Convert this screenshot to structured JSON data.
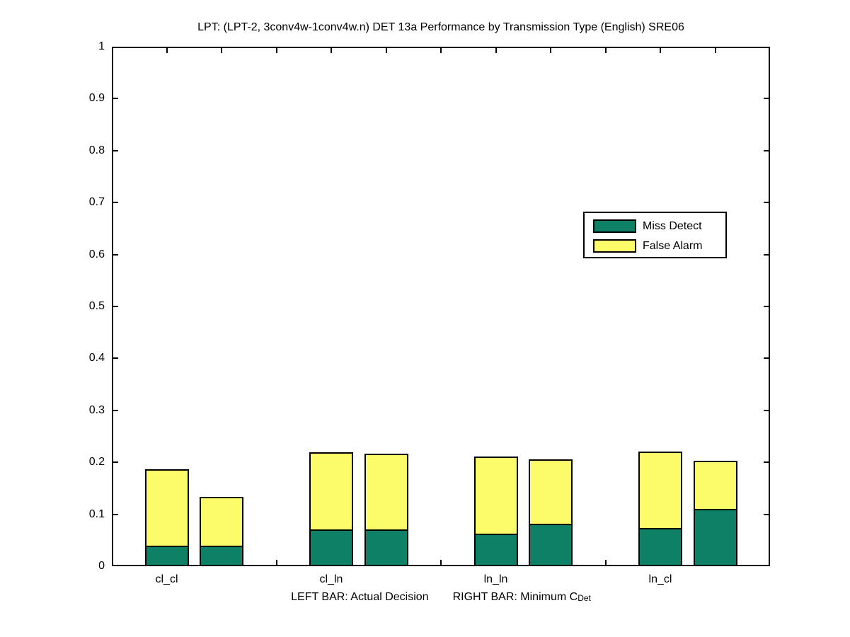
{
  "title": "LPT: (LPT-2, 3conv4w-1conv4w.n) DET 13a Performance by Transmission Type (English) SRE06",
  "legend": {
    "items": [
      {
        "label": "Miss Detect",
        "color": "#0E8065"
      },
      {
        "label": "False Alarm",
        "color": "#FCFC6B"
      }
    ],
    "position": "upper right"
  },
  "xlabel": {
    "left_text": "LEFT BAR: Actual Decision",
    "right_text": "RIGHT BAR: Minimum C",
    "right_subscript": "Det"
  },
  "chart_data": {
    "type": "bar",
    "stacked": true,
    "title": "LPT: (LPT-2, 3conv4w-1conv4w.n) DET 13a Performance by Transmission Type (English) SRE06",
    "categories": [
      "cl_cl",
      "cl_ln",
      "ln_ln",
      "ln_cl"
    ],
    "bar_meaning": {
      "left_bar": "Actual Decision",
      "right_bar": "Minimum C_Det"
    },
    "series_names": [
      "Miss Detect",
      "False Alarm"
    ],
    "series_colors": {
      "miss_detect": "#0E8065",
      "false_alarm": "#FCFC6B"
    },
    "groups": [
      {
        "category": "cl_cl",
        "actual_decision": {
          "miss_detect": 0.04,
          "false_alarm": 0.147,
          "total": 0.187
        },
        "minimum_cdet": {
          "miss_detect": 0.04,
          "false_alarm": 0.094,
          "total": 0.134
        }
      },
      {
        "category": "cl_ln",
        "actual_decision": {
          "miss_detect": 0.071,
          "false_alarm": 0.149,
          "total": 0.22
        },
        "minimum_cdet": {
          "miss_detect": 0.071,
          "false_alarm": 0.146,
          "total": 0.217
        }
      },
      {
        "category": "ln_ln",
        "actual_decision": {
          "miss_detect": 0.063,
          "false_alarm": 0.148,
          "total": 0.211
        },
        "minimum_cdet": {
          "miss_detect": 0.082,
          "false_alarm": 0.124,
          "total": 0.206
        }
      },
      {
        "category": "ln_cl",
        "actual_decision": {
          "miss_detect": 0.074,
          "false_alarm": 0.147,
          "total": 0.221
        },
        "minimum_cdet": {
          "miss_detect": 0.11,
          "false_alarm": 0.093,
          "total": 0.203
        }
      }
    ],
    "ylim": [
      0,
      1
    ],
    "xlim": [
      0,
      12
    ],
    "bar_data_positions": [
      [
        1,
        2
      ],
      [
        4,
        5
      ],
      [
        7,
        8
      ],
      [
        10,
        11
      ]
    ],
    "yticks": [
      0,
      0.1,
      0.2,
      0.3,
      0.4,
      0.5,
      0.6,
      0.7,
      0.8,
      0.9,
      1
    ],
    "yticklabels": [
      "0",
      "0.1",
      "0.2",
      "0.3",
      "0.4",
      "0.5",
      "0.6",
      "0.7",
      "0.8",
      "0.9",
      "1"
    ],
    "top_tick_positions": [
      1,
      2,
      3,
      4,
      5,
      6,
      7,
      8,
      9,
      10,
      11
    ],
    "bottom_tick_positions": [
      3,
      6,
      9
    ],
    "grid": false,
    "legend_position": "upper right",
    "axis_color": "#000000",
    "background": "#FFFFFF"
  }
}
